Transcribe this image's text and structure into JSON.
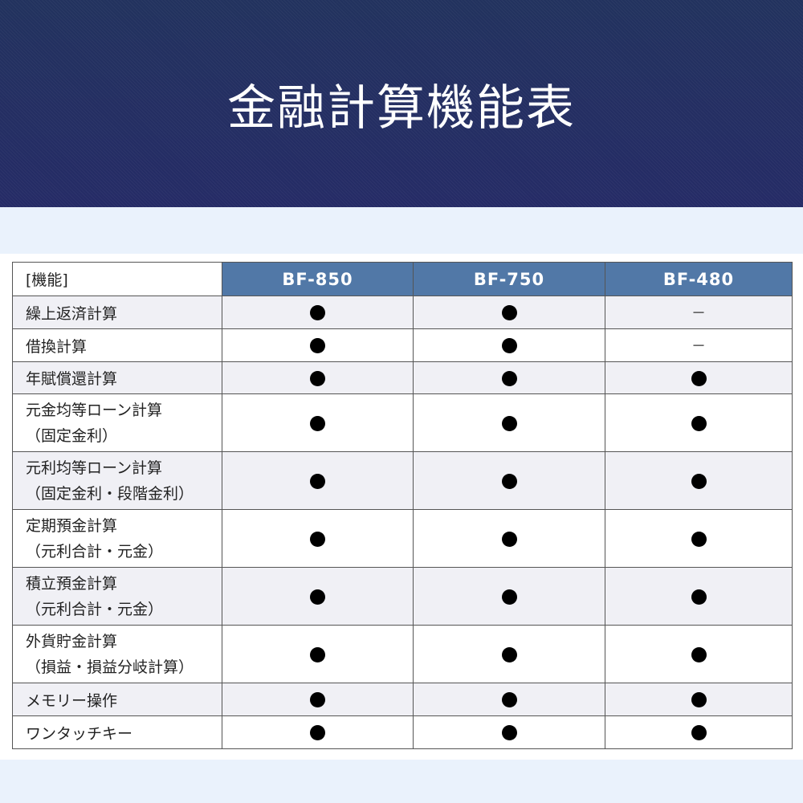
{
  "title": "金融計算機能表",
  "table": {
    "header": {
      "feature": "[機能]",
      "models": [
        "BF-850",
        "BF-750",
        "BF-480"
      ]
    },
    "rows": [
      {
        "feature": [
          "繰上返済計算"
        ],
        "marks": [
          "●",
          "●",
          "－"
        ]
      },
      {
        "feature": [
          "借換計算"
        ],
        "marks": [
          "●",
          "●",
          "－"
        ]
      },
      {
        "feature": [
          "年賦償還計算"
        ],
        "marks": [
          "●",
          "●",
          "●"
        ]
      },
      {
        "feature": [
          "元金均等ローン計算",
          "（固定金利）"
        ],
        "marks": [
          "●",
          "●",
          "●"
        ]
      },
      {
        "feature": [
          "元利均等ローン計算",
          "（固定金利・段階金利）"
        ],
        "marks": [
          "●",
          "●",
          "●"
        ]
      },
      {
        "feature": [
          "定期預金計算",
          "（元利合計・元金）"
        ],
        "marks": [
          "●",
          "●",
          "●"
        ]
      },
      {
        "feature": [
          "積立預金計算",
          "（元利合計・元金）"
        ],
        "marks": [
          "●",
          "●",
          "●"
        ]
      },
      {
        "feature": [
          "外貨貯金計算",
          "（損益・損益分岐計算）"
        ],
        "marks": [
          "●",
          "●",
          "●"
        ]
      },
      {
        "feature": [
          "メモリー操作"
        ],
        "marks": [
          "●",
          "●",
          "●"
        ]
      },
      {
        "feature": [
          "ワンタッチキー"
        ],
        "marks": [
          "●",
          "●",
          "●"
        ]
      }
    ]
  },
  "colors": {
    "banner": "#232e62",
    "header_cell": "#5178a7",
    "band": "#eaf2fc",
    "stripe": "#f0f0f5"
  }
}
